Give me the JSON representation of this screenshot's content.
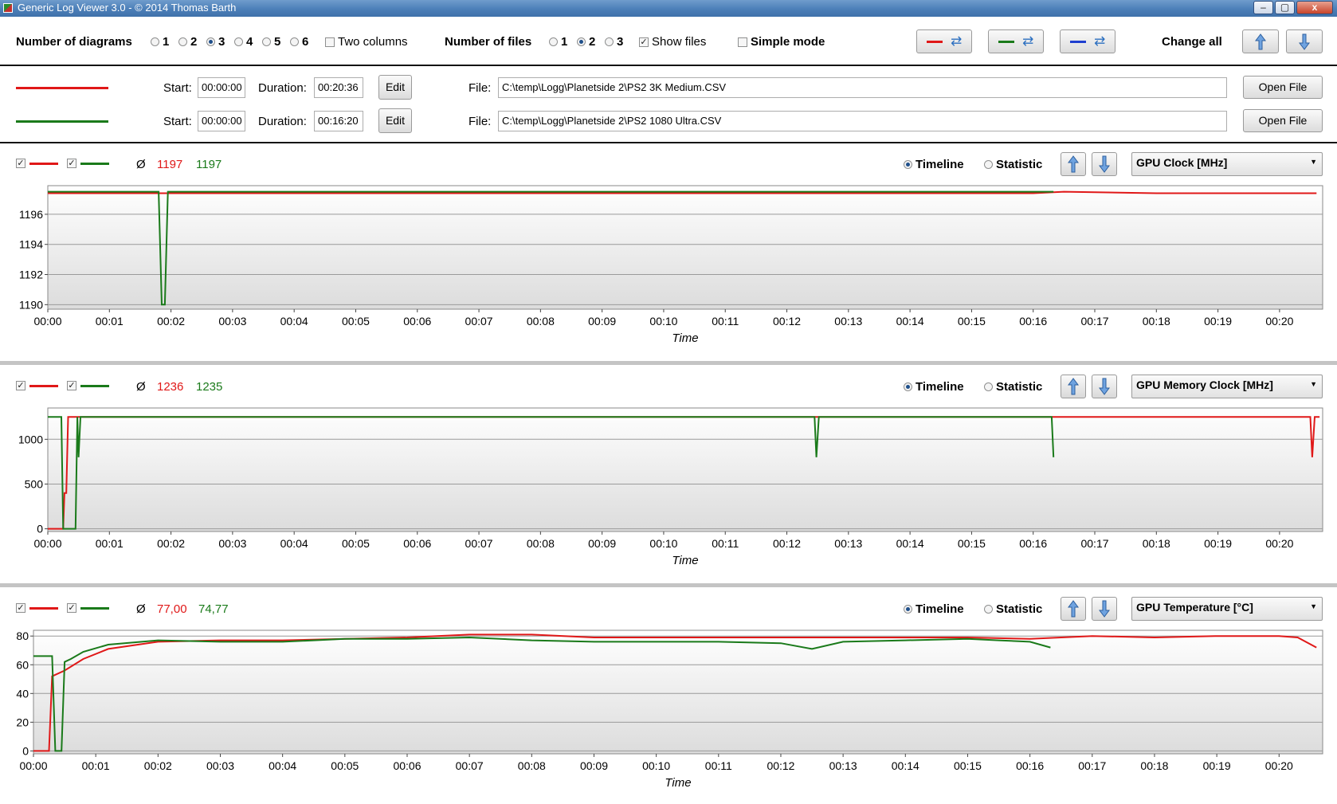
{
  "window": {
    "title": "Generic Log Viewer 3.0 - © 2014 Thomas Barth",
    "controls": [
      "–",
      "▢",
      "x"
    ]
  },
  "toolbar": {
    "num_diagrams_label": "Number of diagrams",
    "diagram_options": [
      "1",
      "2",
      "3",
      "4",
      "5",
      "6"
    ],
    "diagram_selected": "3",
    "two_columns_label": "Two columns",
    "two_columns_checked": false,
    "num_files_label": "Number of files",
    "file_options": [
      "1",
      "2",
      "3"
    ],
    "file_selected": "2",
    "show_files_label": "Show files",
    "show_files_checked": true,
    "simple_mode_label": "Simple mode",
    "simple_mode_checked": false,
    "change_all_label": "Change all",
    "swap_buttons": [
      {
        "color": "#e01818",
        "icon": "refresh-icon"
      },
      {
        "color": "#1a7a1a",
        "icon": "refresh-icon"
      },
      {
        "color": "#1f3fd0",
        "icon": "refresh-icon"
      }
    ]
  },
  "files": [
    {
      "color": "#e01818",
      "start_label": "Start:",
      "start": "00:00:00",
      "duration_label": "Duration:",
      "duration": "00:20:36",
      "edit_label": "Edit",
      "file_label": "File:",
      "path": "C:\\temp\\Logg\\Planetside 2\\PS2 3K Medium.CSV",
      "open_label": "Open File"
    },
    {
      "color": "#1a7a1a",
      "start_label": "Start:",
      "start": "00:00:00",
      "duration_label": "Duration:",
      "duration": "00:16:20",
      "edit_label": "Edit",
      "file_label": "File:",
      "path": "C:\\temp\\Logg\\Planetside 2\\PS2 1080 Ultra.CSV",
      "open_label": "Open File"
    }
  ],
  "colors": {
    "red": "#e01818",
    "green": "#1a7a1a",
    "blue": "#1f3fd0",
    "plot_grad_top": "#ffffff",
    "plot_grad_bottom": "#dcdcdc"
  },
  "panels": [
    {
      "avg_symbol": "Ø",
      "avg_red": "1197",
      "avg_green": "1197",
      "mode_timeline": "Timeline",
      "mode_statistic": "Statistic",
      "mode_selected": "Timeline",
      "metric": "GPU Clock [MHz]"
    },
    {
      "avg_symbol": "Ø",
      "avg_red": "1236",
      "avg_green": "1235",
      "mode_timeline": "Timeline",
      "mode_statistic": "Statistic",
      "mode_selected": "Timeline",
      "metric": "GPU Memory Clock [MHz]"
    },
    {
      "avg_symbol": "Ø",
      "avg_red": "77,00",
      "avg_green": "74,77",
      "mode_timeline": "Timeline",
      "mode_statistic": "Statistic",
      "mode_selected": "Timeline",
      "metric": "GPU Temperature [°C]"
    }
  ],
  "chart_data": [
    {
      "type": "line",
      "xlabel": "Time",
      "ylabel": "",
      "x_ticks": [
        "00:00",
        "00:01",
        "00:02",
        "00:03",
        "00:04",
        "00:05",
        "00:06",
        "00:07",
        "00:08",
        "00:09",
        "00:10",
        "00:11",
        "00:12",
        "00:13",
        "00:14",
        "00:15",
        "00:16",
        "00:17",
        "00:18",
        "00:19",
        "00:20"
      ],
      "xlim_min": [
        0,
        20.7
      ],
      "y_ticks": [
        1190,
        1192,
        1194,
        1196
      ],
      "ylim": [
        1189.7,
        1197.9
      ],
      "grid": true,
      "series": [
        {
          "color": "red",
          "x": [
            0,
            2,
            4,
            6,
            8,
            10,
            12,
            14,
            16,
            16.5,
            18,
            20,
            20.6
          ],
          "y": [
            1197.4,
            1197.4,
            1197.4,
            1197.4,
            1197.4,
            1197.4,
            1197.4,
            1197.4,
            1197.4,
            1197.5,
            1197.4,
            1197.4,
            1197.4
          ]
        },
        {
          "color": "green",
          "x": [
            0,
            1.8,
            1.85,
            1.9,
            1.95,
            2.0,
            4,
            8,
            12,
            16,
            16.33
          ],
          "y": [
            1197.5,
            1197.5,
            1190.0,
            1190.0,
            1197.5,
            1197.5,
            1197.5,
            1197.5,
            1197.5,
            1197.5,
            1197.5
          ]
        }
      ]
    },
    {
      "type": "line",
      "xlabel": "Time",
      "ylabel": "",
      "x_ticks": [
        "00:00",
        "00:01",
        "00:02",
        "00:03",
        "00:04",
        "00:05",
        "00:06",
        "00:07",
        "00:08",
        "00:09",
        "00:10",
        "00:11",
        "00:12",
        "00:13",
        "00:14",
        "00:15",
        "00:16",
        "00:17",
        "00:18",
        "00:19",
        "00:20"
      ],
      "xlim_min": [
        0,
        20.7
      ],
      "y_ticks": [
        0,
        500,
        1000
      ],
      "ylim": [
        -30,
        1350
      ],
      "grid": true,
      "series": [
        {
          "color": "red",
          "x": [
            0,
            0.25,
            0.27,
            0.3,
            0.33,
            6,
            12,
            18,
            20.5,
            20.53,
            20.57,
            20.6,
            20.65
          ],
          "y": [
            0,
            0,
            400,
            400,
            1250,
            1250,
            1250,
            1250,
            1250,
            800,
            1250,
            1250,
            1250
          ]
        },
        {
          "color": "green",
          "x": [
            0,
            0.22,
            0.25,
            0.35,
            0.45,
            0.48,
            0.5,
            0.53,
            12.45,
            12.48,
            12.52,
            16.3,
            16.33
          ],
          "y": [
            1250,
            1250,
            0,
            0,
            0,
            1250,
            800,
            1250,
            1250,
            800,
            1250,
            1250,
            800
          ]
        }
      ]
    },
    {
      "type": "line",
      "xlabel": "Time",
      "ylabel": "",
      "x_ticks": [
        "00:00",
        "00:01",
        "00:02",
        "00:03",
        "00:04",
        "00:05",
        "00:06",
        "00:07",
        "00:08",
        "00:09",
        "00:10",
        "00:11",
        "00:12",
        "00:13",
        "00:14",
        "00:15",
        "00:16",
        "00:17",
        "00:18",
        "00:19",
        "00:20"
      ],
      "xlim_min": [
        0,
        20.7
      ],
      "y_ticks": [
        0,
        20,
        40,
        60,
        80
      ],
      "ylim": [
        -2,
        84
      ],
      "grid": true,
      "series": [
        {
          "color": "red",
          "x": [
            0,
            0.25,
            0.3,
            0.5,
            0.8,
            1.2,
            2,
            3,
            4,
            5,
            6,
            7,
            8,
            9,
            10,
            11,
            12,
            13,
            14,
            15,
            16,
            17,
            18,
            19,
            20,
            20.3,
            20.6
          ],
          "y": [
            0,
            0,
            52,
            56,
            64,
            71,
            76,
            77,
            77,
            78,
            79,
            81,
            81,
            79,
            79,
            79,
            79,
            79,
            79,
            79,
            78,
            80,
            79,
            80,
            80,
            79,
            72
          ]
        },
        {
          "color": "green",
          "x": [
            0,
            0.3,
            0.35,
            0.45,
            0.5,
            0.6,
            0.8,
            1.2,
            2,
            3,
            4,
            5,
            6,
            7,
            8,
            9,
            10,
            11,
            12,
            12.5,
            13,
            14,
            15,
            15.5,
            16,
            16.33
          ],
          "y": [
            66,
            66,
            0,
            0,
            62,
            64,
            69,
            74,
            77,
            76,
            76,
            78,
            78,
            79,
            77,
            76,
            76,
            76,
            75,
            71,
            76,
            77,
            78,
            77,
            76,
            72
          ]
        }
      ]
    }
  ]
}
